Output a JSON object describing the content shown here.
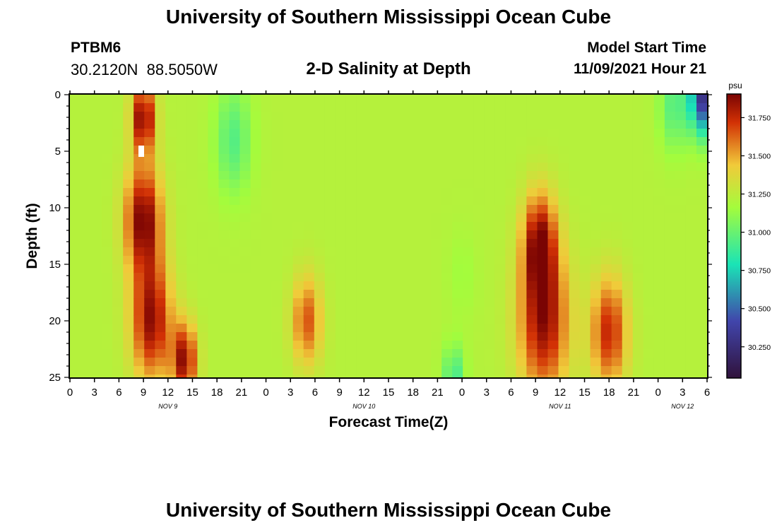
{
  "header": {
    "title": "University of Southern Mississippi Ocean Cube",
    "station_id": "PTBM6",
    "station_coords": "30.2120N  88.5050W",
    "subtitle": "2-D Salinity at Depth",
    "model_label": "Model Start Time",
    "model_time": "11/09/2021 Hour 21"
  },
  "footer": {
    "title": "University of Southern Mississippi Ocean Cube"
  },
  "chart_data": {
    "type": "heatmap",
    "title": "2-D Salinity at Depth",
    "xlabel": "Forecast Time(Z)",
    "ylabel": "Depth (ft)",
    "x_range_hours": [
      0,
      78
    ],
    "xlim_hours": [
      0,
      78
    ],
    "ylim": [
      0,
      25
    ],
    "y_ticks": [
      0,
      5,
      10,
      15,
      20,
      25
    ],
    "x_ticks_hours": [
      0,
      3,
      6,
      9,
      12,
      15,
      18,
      21,
      24,
      27,
      30,
      33,
      36,
      39,
      42,
      45,
      48,
      51,
      54,
      57,
      60,
      63,
      66,
      69,
      72,
      75,
      78
    ],
    "x_tick_labels": [
      "0",
      "3",
      "6",
      "9",
      "12",
      "15",
      "18",
      "21",
      "0",
      "3",
      "6",
      "9",
      "12",
      "15",
      "18",
      "21",
      "0",
      "3",
      "6",
      "9",
      "12",
      "15",
      "18",
      "21",
      "0",
      "3",
      "6"
    ],
    "date_labels": [
      {
        "text": "NOV 9",
        "hour": 12
      },
      {
        "text": "NOV 10",
        "hour": 36
      },
      {
        "text": "NOV 11",
        "hour": 60
      },
      {
        "text": "NOV 12",
        "hour": 75
      }
    ],
    "colorbar": {
      "unit": "psu",
      "min": 30.05,
      "max": 31.9,
      "tick_values": [
        31.75,
        31.5,
        31.25,
        31.0,
        30.75,
        30.5,
        30.25
      ],
      "tick_labels": [
        "31.750",
        "31.500",
        "31.250",
        "31.000",
        "30.750",
        "30.500",
        "30.250"
      ]
    },
    "salinity_features_psu": [
      {
        "hour": 9,
        "depth": 2,
        "s": 1.4,
        "value": 31.9
      },
      {
        "hour": 9,
        "depth": 11,
        "s": 2.2,
        "value": 31.9
      },
      {
        "hour": 10,
        "depth": 20,
        "s": 2.4,
        "value": 31.85
      },
      {
        "hour": 14,
        "depth": 23.5,
        "s": 1.5,
        "value": 31.85
      },
      {
        "hour": 20,
        "depth": 4,
        "s": 2.2,
        "value": 30.95
      },
      {
        "hour": 29,
        "depth": 20,
        "s": 1.8,
        "value": 31.65
      },
      {
        "hour": 58,
        "depth": 20,
        "s": 3.0,
        "value": 31.85
      },
      {
        "hour": 57.5,
        "depth": 13,
        "s": 2.0,
        "value": 31.8
      },
      {
        "hour": 66,
        "depth": 21,
        "s": 2.2,
        "value": 31.75
      },
      {
        "hour": 48,
        "depth": 16,
        "s": 1.8,
        "value": 31.15
      },
      {
        "hour": 47,
        "depth": 25,
        "s": 1.3,
        "value": 30.9
      },
      {
        "hour": 74,
        "depth": 1,
        "s": 1.8,
        "value": 30.95
      },
      {
        "hour": 77.5,
        "depth": 0,
        "s": 1.6,
        "value": 30.3
      }
    ]
  }
}
